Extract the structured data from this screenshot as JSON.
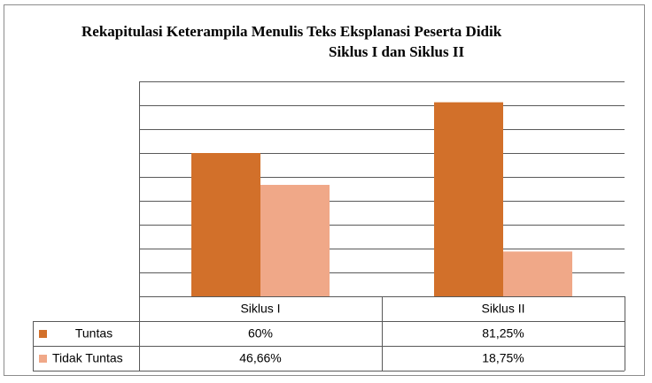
{
  "chart_data": {
    "type": "bar",
    "title_line1": "Rekapitulasi Keterampila Menulis Teks Eksplanasi Peserta Didik",
    "title_line2": "Siklus I dan Siklus II",
    "categories": [
      "Siklus I",
      "Siklus II"
    ],
    "series": [
      {
        "name": "Tuntas",
        "values": [
          60,
          81.25
        ],
        "labels": [
          "60%",
          "81,25%"
        ],
        "color": "#D2702A"
      },
      {
        "name": "Tidak Tuntas",
        "values": [
          46.66,
          18.75
        ],
        "labels": [
          "46,66%",
          "18,75%"
        ],
        "color": "#F0A888"
      }
    ],
    "ylim": [
      0,
      90
    ],
    "grid": true,
    "legend": "data-table"
  }
}
